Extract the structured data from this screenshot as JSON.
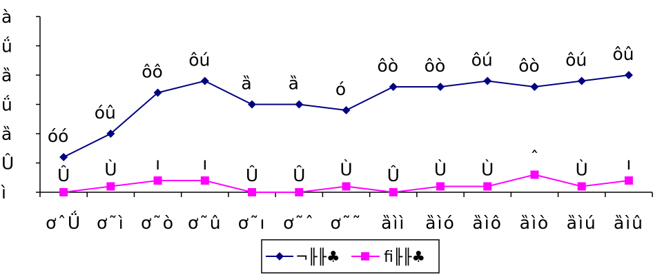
{
  "chart_data": {
    "type": "line",
    "categories": [
      "ơˆǗ",
      "ơ˜ì",
      "ơ˜ò",
      "ơ˜û",
      "ơ˜ı",
      "ơ˜ˆ",
      "ơ˜˜",
      "ȁìì",
      "ȁìó",
      "ȁìô",
      "ȁìò",
      "ȁìú",
      "ȁìû"
    ],
    "ytick_labels": [
      "ì",
      "Û",
      "ȁ",
      "ǘ",
      "ȁ",
      "ǘ",
      "à"
    ],
    "ylim": [
      0,
      6
    ],
    "series": [
      {
        "name": "¬╟╟♣",
        "color": "#000080",
        "marker": "diamond",
        "values": [
          1.2,
          2.0,
          3.4,
          3.8,
          3.0,
          3.0,
          2.8,
          3.6,
          3.6,
          3.8,
          3.6,
          3.8,
          4.0
        ],
        "labels": [
          "óó",
          "óû",
          "ôô",
          "ôú",
          "ȁ",
          "ȁ",
          "ó",
          "ôò",
          "ôò",
          "ôú",
          "ôò",
          "ôú",
          "ôû"
        ]
      },
      {
        "name": "fi╟╟♣",
        "color": "#FF00FF",
        "marker": "square",
        "values": [
          0.0,
          0.2,
          0.4,
          0.4,
          0.0,
          0.0,
          0.2,
          0.0,
          0.2,
          0.2,
          0.6,
          0.2,
          0.4
        ],
        "labels": [
          "Û",
          "Ù",
          "ı",
          "ı",
          "Û",
          "Û",
          "Ù",
          "Û",
          "Ù",
          "Ù",
          "ˆ",
          "Ù",
          "ı"
        ]
      }
    ],
    "grid": false,
    "legend_position": "bottom"
  }
}
